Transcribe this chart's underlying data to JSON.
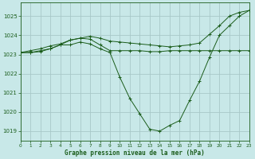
{
  "title": "Graphe pression niveau de la mer (hPa)",
  "background_color": "#c8e8e8",
  "grid_color": "#a8c8c8",
  "line_color": "#1a5c1a",
  "xlim": [
    0,
    23
  ],
  "ylim": [
    1018.5,
    1025.7
  ],
  "yticks": [
    1019,
    1020,
    1021,
    1022,
    1023,
    1024,
    1025
  ],
  "xticks": [
    0,
    1,
    2,
    3,
    4,
    5,
    6,
    7,
    8,
    9,
    10,
    11,
    12,
    13,
    14,
    15,
    16,
    17,
    18,
    19,
    20,
    21,
    22,
    23
  ],
  "series": [
    [
      1023.1,
      1023.1,
      1023.2,
      1023.3,
      1023.5,
      1023.5,
      1023.65,
      1023.55,
      1023.3,
      1023.1,
      1021.8,
      1020.7,
      1019.9,
      1019.1,
      1019.0,
      1019.3,
      1019.55,
      1020.6,
      1021.6,
      1022.85,
      1024.0,
      1024.5,
      1025.0,
      1025.3
    ],
    [
      1023.1,
      1023.2,
      1023.3,
      1023.45,
      1023.55,
      1023.75,
      1023.85,
      1023.95,
      1023.85,
      1023.7,
      1023.65,
      1023.6,
      1023.55,
      1023.5,
      1023.45,
      1023.4,
      1023.45,
      1023.5,
      1023.6,
      1024.05,
      1024.5,
      1025.0,
      1025.2,
      1025.3
    ],
    [
      1023.1,
      1023.1,
      1023.15,
      1023.3,
      1023.5,
      1023.75,
      1023.85,
      1023.8,
      1023.5,
      1023.2,
      1023.2,
      1023.2,
      1023.2,
      1023.15,
      1023.15,
      1023.2,
      1023.2,
      1023.2,
      1023.2,
      1023.2,
      1023.2,
      1023.2,
      1023.2,
      1023.2
    ]
  ]
}
